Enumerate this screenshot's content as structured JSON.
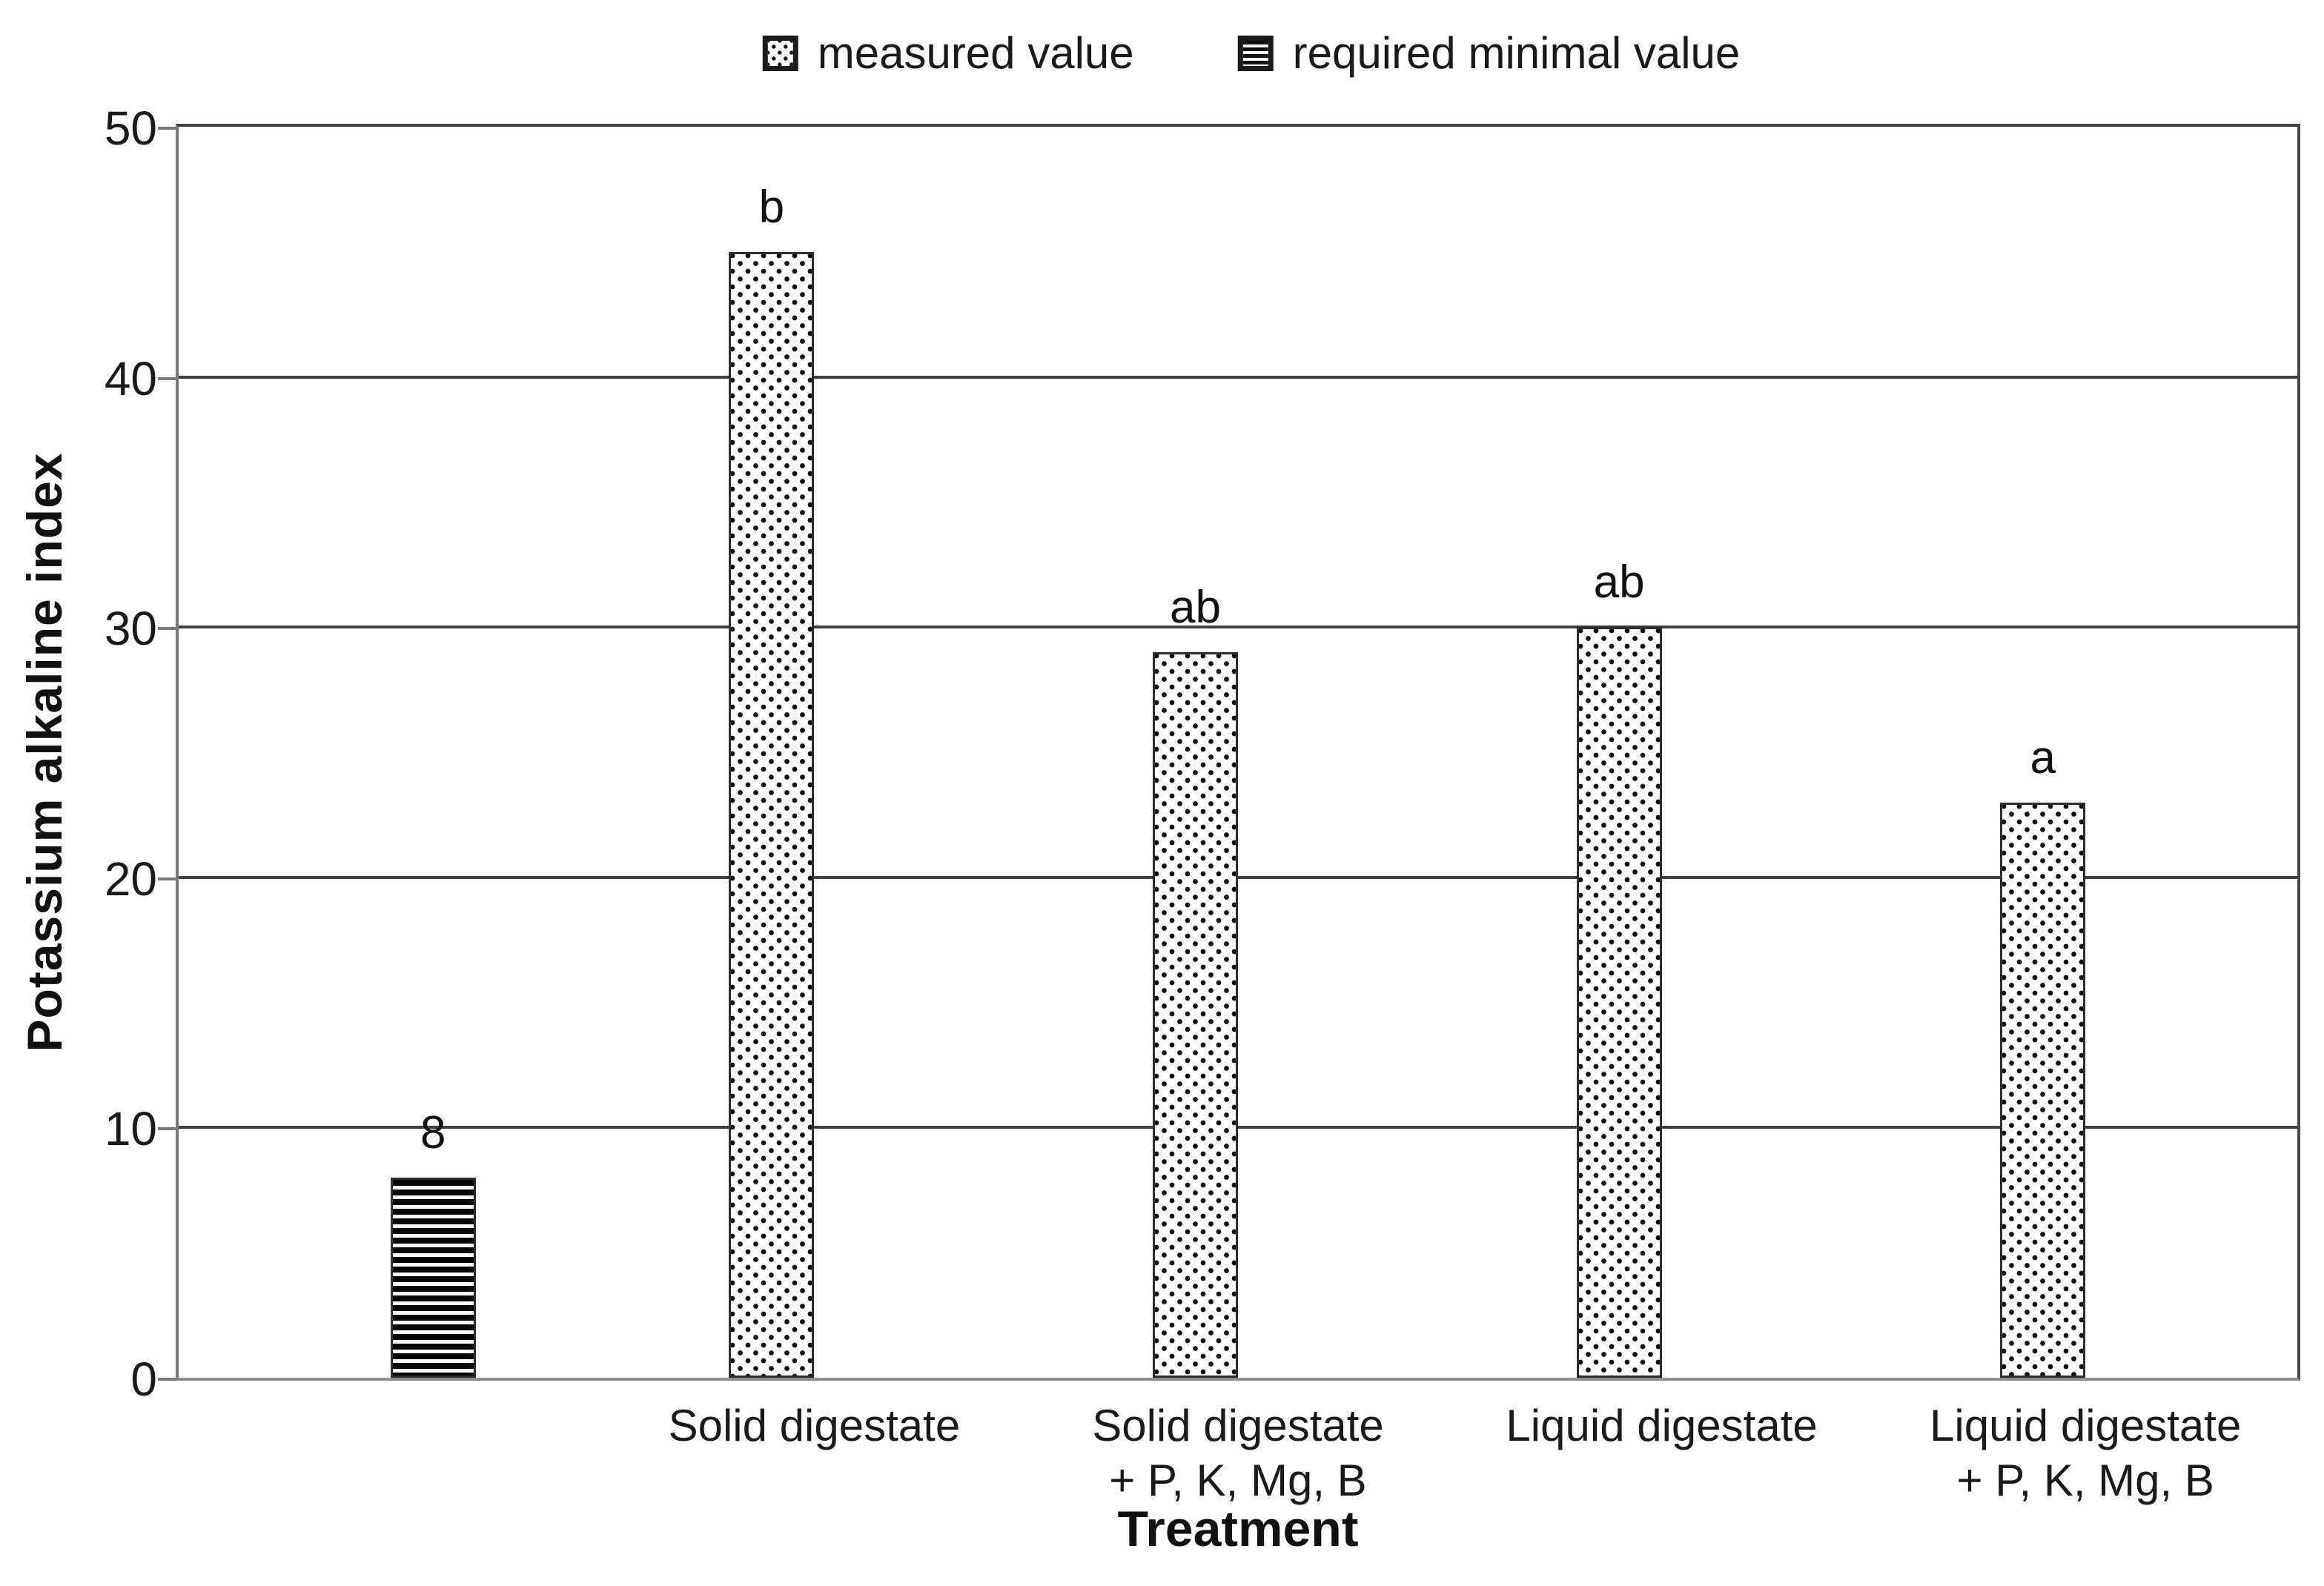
{
  "chart_data": {
    "type": "bar",
    "title": "",
    "xlabel": "Treatment",
    "ylabel": "Potassium alkaline index",
    "ylim": [
      0,
      50
    ],
    "yticks": [
      0,
      10,
      20,
      30,
      40,
      50
    ],
    "grid": "horizontal gridlines at every 10 units",
    "legend_position": "top-center",
    "categories": [
      {
        "lines": []
      },
      {
        "lines": [
          "Solid digestate"
        ]
      },
      {
        "lines": [
          "Solid digestate",
          "+ P, K, Mg, B"
        ]
      },
      {
        "lines": [
          "Liquid digestate"
        ]
      },
      {
        "lines": [
          "Liquid digestate",
          "+ P, K, Mg, B"
        ]
      }
    ],
    "series": [
      {
        "name": "measured value",
        "pattern": "dots",
        "values": [
          null,
          45,
          29,
          30,
          23
        ],
        "bar_labels": [
          null,
          "b",
          "ab",
          "ab",
          "a"
        ]
      },
      {
        "name": "required minimal value",
        "pattern": "hlines",
        "values": [
          8,
          null,
          null,
          null,
          null
        ],
        "bar_labels": [
          "8",
          null,
          null,
          null,
          null
        ]
      }
    ],
    "colors": {
      "foreground": "#1a1a1a",
      "gridline": "#3f3f3f",
      "axis_gray": "#8f8f8f",
      "background": "#ffffff"
    }
  }
}
